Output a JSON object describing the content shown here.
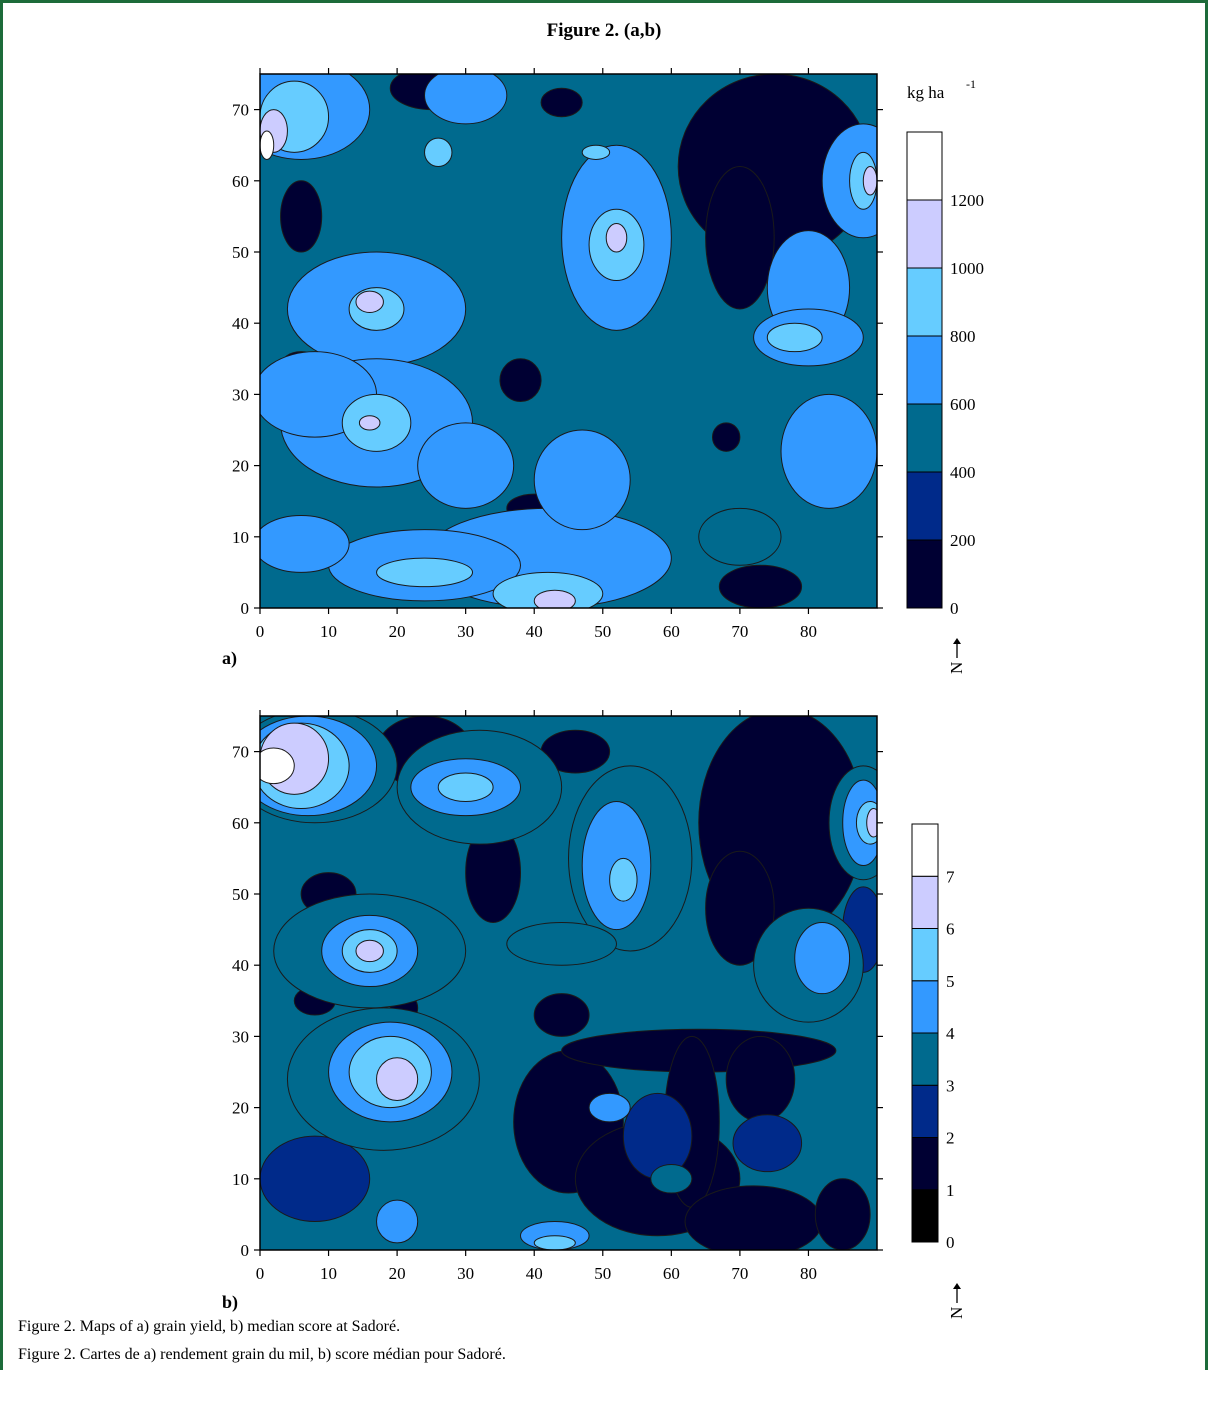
{
  "figure_title": "Figure 2. (a,b)",
  "captions": {
    "en": "Figure 2. Maps of a) grain yield, b) median score at Sadoré.",
    "fr": "Figure 2. Cartes de a) rendement grain du mil, b) score médian pour Sadoré."
  },
  "colors": {
    "frame": "#1d6b3a",
    "levels_a": [
      "#000033",
      "#002a8a",
      "#006a8e",
      "#3399ff",
      "#66ccff",
      "#ccccff",
      "#ffffff"
    ],
    "levels_b": [
      "#000000",
      "#000033",
      "#002a8a",
      "#006a8e",
      "#3399ff",
      "#66ccff",
      "#ccccff",
      "#ffffff"
    ]
  },
  "chart_data": [
    {
      "type": "heatmap",
      "panel_label": "a)",
      "quantity": "grain yield",
      "xlim": [
        0,
        90
      ],
      "ylim": [
        0,
        75
      ],
      "x_ticks": [
        "0",
        "10",
        "20",
        "30",
        "40",
        "50",
        "60",
        "70",
        "80"
      ],
      "y_ticks": [
        "0",
        "10",
        "20",
        "30",
        "40",
        "50",
        "60",
        "70"
      ],
      "colorbar_unit": "kg ha",
      "colorbar_unit_exp": "-1",
      "colorbar_labels": [
        "0",
        "200",
        "400",
        "600",
        "800",
        "1000",
        "1200"
      ],
      "north_label": "N",
      "base_level": 2,
      "regions": [
        {
          "level": 0,
          "cx": 75,
          "cy": 62,
          "rx": 14,
          "ry": 13
        },
        {
          "level": 0,
          "cx": 70,
          "cy": 52,
          "rx": 5,
          "ry": 10
        },
        {
          "level": 0,
          "cx": 25,
          "cy": 73,
          "rx": 6,
          "ry": 3
        },
        {
          "level": 0,
          "cx": 6,
          "cy": 55,
          "rx": 3,
          "ry": 5
        },
        {
          "level": 0,
          "cx": 6,
          "cy": 34,
          "rx": 3,
          "ry": 2
        },
        {
          "level": 0,
          "cx": 38,
          "cy": 32,
          "rx": 3,
          "ry": 3
        },
        {
          "level": 0,
          "cx": 40,
          "cy": 14,
          "rx": 4,
          "ry": 2
        },
        {
          "level": 0,
          "cx": 73,
          "cy": 3,
          "rx": 6,
          "ry": 3
        },
        {
          "level": 0,
          "cx": 68,
          "cy": 24,
          "rx": 2,
          "ry": 2
        },
        {
          "level": 0,
          "cx": 44,
          "cy": 71,
          "rx": 3,
          "ry": 2
        },
        {
          "level": 2,
          "cx": 70,
          "cy": 10,
          "rx": 6,
          "ry": 4
        },
        {
          "level": 3,
          "cx": 6,
          "cy": 70,
          "rx": 10,
          "ry": 7
        },
        {
          "level": 3,
          "cx": 88,
          "cy": 60,
          "rx": 6,
          "ry": 8
        },
        {
          "level": 3,
          "cx": 30,
          "cy": 72,
          "rx": 6,
          "ry": 4
        },
        {
          "level": 3,
          "cx": 17,
          "cy": 42,
          "rx": 13,
          "ry": 8
        },
        {
          "level": 3,
          "cx": 17,
          "cy": 26,
          "rx": 14,
          "ry": 9
        },
        {
          "level": 3,
          "cx": 52,
          "cy": 52,
          "rx": 8,
          "ry": 13
        },
        {
          "level": 3,
          "cx": 80,
          "cy": 45,
          "rx": 6,
          "ry": 8
        },
        {
          "level": 3,
          "cx": 80,
          "cy": 38,
          "rx": 8,
          "ry": 4
        },
        {
          "level": 3,
          "cx": 83,
          "cy": 22,
          "rx": 7,
          "ry": 8
        },
        {
          "level": 3,
          "cx": 42,
          "cy": 7,
          "rx": 18,
          "ry": 7
        },
        {
          "level": 3,
          "cx": 24,
          "cy": 6,
          "rx": 14,
          "ry": 5
        },
        {
          "level": 3,
          "cx": 6,
          "cy": 9,
          "rx": 7,
          "ry": 4
        },
        {
          "level": 3,
          "cx": 47,
          "cy": 18,
          "rx": 7,
          "ry": 7
        },
        {
          "level": 3,
          "cx": 30,
          "cy": 20,
          "rx": 7,
          "ry": 6
        },
        {
          "level": 3,
          "cx": 8,
          "cy": 30,
          "rx": 9,
          "ry": 6
        },
        {
          "level": 4,
          "cx": 5,
          "cy": 69,
          "rx": 5,
          "ry": 5
        },
        {
          "level": 4,
          "cx": 88,
          "cy": 60,
          "rx": 2,
          "ry": 4
        },
        {
          "level": 4,
          "cx": 52,
          "cy": 51,
          "rx": 4,
          "ry": 5
        },
        {
          "level": 4,
          "cx": 17,
          "cy": 42,
          "rx": 4,
          "ry": 3
        },
        {
          "level": 4,
          "cx": 17,
          "cy": 26,
          "rx": 5,
          "ry": 4
        },
        {
          "level": 4,
          "cx": 78,
          "cy": 38,
          "rx": 4,
          "ry": 2
        },
        {
          "level": 4,
          "cx": 24,
          "cy": 5,
          "rx": 7,
          "ry": 2
        },
        {
          "level": 4,
          "cx": 26,
          "cy": 64,
          "rx": 2,
          "ry": 2
        },
        {
          "level": 4,
          "cx": 49,
          "cy": 64,
          "rx": 2,
          "ry": 1
        },
        {
          "level": 4,
          "cx": 42,
          "cy": 2,
          "rx": 8,
          "ry": 3
        },
        {
          "level": 5,
          "cx": 2,
          "cy": 67,
          "rx": 2,
          "ry": 3
        },
        {
          "level": 5,
          "cx": 89,
          "cy": 60,
          "rx": 1,
          "ry": 2
        },
        {
          "level": 5,
          "cx": 52,
          "cy": 52,
          "rx": 1.5,
          "ry": 2
        },
        {
          "level": 5,
          "cx": 16,
          "cy": 43,
          "rx": 2,
          "ry": 1.5
        },
        {
          "level": 5,
          "cx": 16,
          "cy": 26,
          "rx": 1.5,
          "ry": 1
        },
        {
          "level": 5,
          "cx": 43,
          "cy": 1,
          "rx": 3,
          "ry": 1.5
        },
        {
          "level": 6,
          "cx": 1,
          "cy": 65,
          "rx": 1,
          "ry": 2
        }
      ]
    },
    {
      "type": "heatmap",
      "panel_label": "b)",
      "quantity": "median score",
      "xlim": [
        0,
        90
      ],
      "ylim": [
        0,
        75
      ],
      "x_ticks": [
        "0",
        "10",
        "20",
        "30",
        "40",
        "50",
        "60",
        "70",
        "80"
      ],
      "y_ticks": [
        "0",
        "10",
        "20",
        "30",
        "40",
        "50",
        "60",
        "70"
      ],
      "colorbar_labels": [
        "0",
        "1",
        "2",
        "3",
        "4",
        "5",
        "6",
        "7"
      ],
      "north_label": "N",
      "base_level": 3,
      "regions": [
        {
          "level": 1,
          "cx": 76,
          "cy": 60,
          "rx": 12,
          "ry": 16
        },
        {
          "level": 1,
          "cx": 70,
          "cy": 48,
          "rx": 5,
          "ry": 8
        },
        {
          "level": 1,
          "cx": 24,
          "cy": 70,
          "rx": 7,
          "ry": 5
        },
        {
          "level": 1,
          "cx": 46,
          "cy": 70,
          "rx": 5,
          "ry": 3
        },
        {
          "level": 1,
          "cx": 34,
          "cy": 53,
          "rx": 4,
          "ry": 7
        },
        {
          "level": 1,
          "cx": 10,
          "cy": 50,
          "rx": 4,
          "ry": 3
        },
        {
          "level": 1,
          "cx": 8,
          "cy": 35,
          "rx": 3,
          "ry": 2
        },
        {
          "level": 1,
          "cx": 21,
          "cy": 34,
          "rx": 2,
          "ry": 2
        },
        {
          "level": 1,
          "cx": 45,
          "cy": 18,
          "rx": 8,
          "ry": 10
        },
        {
          "level": 1,
          "cx": 58,
          "cy": 10,
          "rx": 12,
          "ry": 8
        },
        {
          "level": 1,
          "cx": 64,
          "cy": 28,
          "rx": 20,
          "ry": 3
        },
        {
          "level": 1,
          "cx": 63,
          "cy": 18,
          "rx": 4,
          "ry": 12
        },
        {
          "level": 1,
          "cx": 73,
          "cy": 24,
          "rx": 5,
          "ry": 6
        },
        {
          "level": 1,
          "cx": 72,
          "cy": 4,
          "rx": 10,
          "ry": 5
        },
        {
          "level": 1,
          "cx": 44,
          "cy": 33,
          "rx": 4,
          "ry": 3
        },
        {
          "level": 1,
          "cx": 85,
          "cy": 5,
          "rx": 4,
          "ry": 5
        },
        {
          "level": 2,
          "cx": 58,
          "cy": 16,
          "rx": 5,
          "ry": 6
        },
        {
          "level": 2,
          "cx": 74,
          "cy": 15,
          "rx": 5,
          "ry": 4
        },
        {
          "level": 2,
          "cx": 8,
          "cy": 10,
          "rx": 8,
          "ry": 6
        },
        {
          "level": 2,
          "cx": 88,
          "cy": 45,
          "rx": 3,
          "ry": 6
        },
        {
          "level": 3,
          "cx": 8,
          "cy": 68,
          "rx": 12,
          "ry": 8
        },
        {
          "level": 3,
          "cx": 32,
          "cy": 65,
          "rx": 12,
          "ry": 8
        },
        {
          "level": 3,
          "cx": 88,
          "cy": 60,
          "rx": 5,
          "ry": 8
        },
        {
          "level": 3,
          "cx": 54,
          "cy": 55,
          "rx": 9,
          "ry": 13
        },
        {
          "level": 3,
          "cx": 16,
          "cy": 42,
          "rx": 14,
          "ry": 8
        },
        {
          "level": 3,
          "cx": 18,
          "cy": 24,
          "rx": 14,
          "ry": 10
        },
        {
          "level": 3,
          "cx": 80,
          "cy": 40,
          "rx": 8,
          "ry": 8
        },
        {
          "level": 3,
          "cx": 44,
          "cy": 43,
          "rx": 8,
          "ry": 3
        },
        {
          "level": 3,
          "cx": 60,
          "cy": 10,
          "rx": 3,
          "ry": 2
        },
        {
          "level": 4,
          "cx": 7,
          "cy": 68,
          "rx": 10,
          "ry": 7
        },
        {
          "level": 4,
          "cx": 30,
          "cy": 65,
          "rx": 8,
          "ry": 4
        },
        {
          "level": 4,
          "cx": 88,
          "cy": 60,
          "rx": 3,
          "ry": 6
        },
        {
          "level": 4,
          "cx": 52,
          "cy": 54,
          "rx": 5,
          "ry": 9
        },
        {
          "level": 4,
          "cx": 16,
          "cy": 42,
          "rx": 7,
          "ry": 5
        },
        {
          "level": 4,
          "cx": 19,
          "cy": 25,
          "rx": 9,
          "ry": 7
        },
        {
          "level": 4,
          "cx": 82,
          "cy": 41,
          "rx": 4,
          "ry": 5
        },
        {
          "level": 4,
          "cx": 51,
          "cy": 20,
          "rx": 3,
          "ry": 2
        },
        {
          "level": 4,
          "cx": 20,
          "cy": 4,
          "rx": 3,
          "ry": 3
        },
        {
          "level": 4,
          "cx": 43,
          "cy": 2,
          "rx": 5,
          "ry": 2
        },
        {
          "level": 5,
          "cx": 6,
          "cy": 68,
          "rx": 7,
          "ry": 6
        },
        {
          "level": 5,
          "cx": 30,
          "cy": 65,
          "rx": 4,
          "ry": 2
        },
        {
          "level": 5,
          "cx": 89,
          "cy": 60,
          "rx": 2,
          "ry": 3
        },
        {
          "level": 5,
          "cx": 53,
          "cy": 52,
          "rx": 2,
          "ry": 3
        },
        {
          "level": 5,
          "cx": 16,
          "cy": 42,
          "rx": 4,
          "ry": 3
        },
        {
          "level": 5,
          "cx": 19,
          "cy": 25,
          "rx": 6,
          "ry": 5
        },
        {
          "level": 5,
          "cx": 43,
          "cy": 1,
          "rx": 3,
          "ry": 1
        },
        {
          "level": 6,
          "cx": 5,
          "cy": 69,
          "rx": 5,
          "ry": 5
        },
        {
          "level": 6,
          "cx": 16,
          "cy": 42,
          "rx": 2,
          "ry": 1.5
        },
        {
          "level": 6,
          "cx": 20,
          "cy": 24,
          "rx": 3,
          "ry": 3
        },
        {
          "level": 6,
          "cx": 89.5,
          "cy": 60,
          "rx": 1,
          "ry": 2
        },
        {
          "level": 7,
          "cx": 2,
          "cy": 68,
          "rx": 3,
          "ry": 2.5
        }
      ]
    }
  ]
}
